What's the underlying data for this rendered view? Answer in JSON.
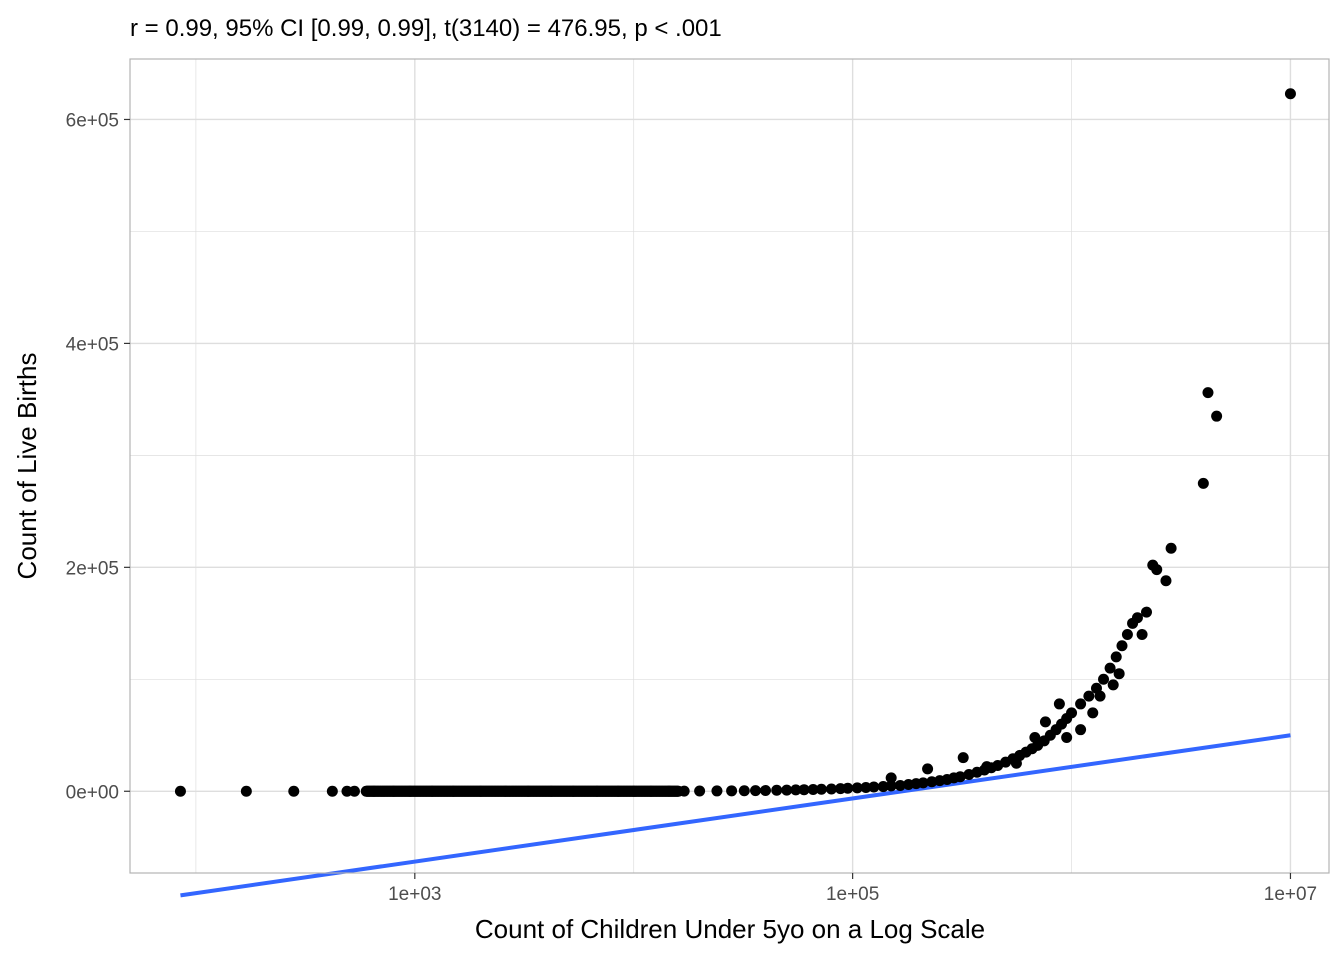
{
  "chart_data": {
    "type": "scatter",
    "title": "r = 0.99, 95% CI [0.99, 0.99], t(3140) = 476.95, p < .001",
    "xlabel": "Count of Children Under 5yo on a Log Scale",
    "ylabel": "Count of Live Births",
    "x_scale": "log10",
    "xlim": [
      50,
      15000000
    ],
    "ylim": [
      -73000,
      654000
    ],
    "x_ticks": [
      {
        "value": 1000,
        "label": "1e+03"
      },
      {
        "value": 100000,
        "label": "1e+05"
      },
      {
        "value": 10000000,
        "label": "1e+07"
      }
    ],
    "x_minor_ticks": [
      100,
      10000,
      1000000
    ],
    "y_ticks": [
      {
        "value": 0,
        "label": "0e+00"
      },
      {
        "value": 200000,
        "label": "2e+05"
      },
      {
        "value": 400000,
        "label": "4e+05"
      },
      {
        "value": 600000,
        "label": "6e+05"
      }
    ],
    "y_minor_ticks": [
      100000,
      300000,
      500000
    ],
    "grid": true,
    "theme": "light",
    "colors": {
      "points": "#000000",
      "fit_line": "#3366ff",
      "grid": "#dedede",
      "panel_border": "#b3b3b3"
    },
    "series": [
      {
        "kind": "points",
        "points": [
          [
            85,
            0
          ],
          [
            170,
            0
          ],
          [
            280,
            0
          ],
          [
            420,
            0
          ],
          [
            490,
            0
          ],
          [
            530,
            0
          ],
          [
            650,
            0
          ],
          [
            800,
            0
          ],
          [
            950,
            0
          ],
          [
            1200,
            0
          ],
          [
            1500,
            0
          ],
          [
            2000,
            0
          ],
          [
            2600,
            0
          ],
          [
            3300,
            0
          ],
          [
            4200,
            0
          ],
          [
            5300,
            0
          ],
          [
            6800,
            0
          ],
          [
            8500,
            0
          ],
          [
            10000,
            0
          ],
          [
            12000,
            0
          ],
          [
            14500,
            100
          ],
          [
            17000,
            150
          ],
          [
            20000,
            200
          ],
          [
            24000,
            300
          ],
          [
            28000,
            400
          ],
          [
            32000,
            500
          ],
          [
            36000,
            600
          ],
          [
            40000,
            700
          ],
          [
            45000,
            900
          ],
          [
            50000,
            1000
          ],
          [
            55000,
            1200
          ],
          [
            60000,
            1400
          ],
          [
            66000,
            1600
          ],
          [
            72000,
            1800
          ],
          [
            80000,
            2000
          ],
          [
            88000,
            2400
          ],
          [
            95000,
            2700
          ],
          [
            105000,
            3000
          ],
          [
            115000,
            3400
          ],
          [
            125000,
            3800
          ],
          [
            138000,
            4200
          ],
          [
            150000,
            4800
          ],
          [
            165000,
            5200
          ],
          [
            180000,
            6000
          ],
          [
            195000,
            6800
          ],
          [
            210000,
            7500
          ],
          [
            230000,
            8500
          ],
          [
            250000,
            9500
          ],
          [
            270000,
            10500
          ],
          [
            290000,
            12000
          ],
          [
            310000,
            13000
          ],
          [
            340000,
            15000
          ],
          [
            370000,
            17000
          ],
          [
            400000,
            19000
          ],
          [
            430000,
            21000
          ],
          [
            460000,
            23000
          ],
          [
            500000,
            26000
          ],
          [
            540000,
            29000
          ],
          [
            580000,
            32000
          ],
          [
            620000,
            35000
          ],
          [
            660000,
            38000
          ],
          [
            700000,
            41000
          ],
          [
            750000,
            45000
          ],
          [
            800000,
            50000
          ],
          [
            850000,
            55000
          ],
          [
            900000,
            60000
          ],
          [
            950000,
            65000
          ],
          [
            1000000,
            70000
          ],
          [
            1100000,
            78000
          ],
          [
            1200000,
            85000
          ],
          [
            1300000,
            92000
          ],
          [
            1400000,
            100000
          ],
          [
            1500000,
            110000
          ],
          [
            1600000,
            120000
          ],
          [
            1700000,
            130000
          ],
          [
            1800000,
            140000
          ],
          [
            1900000,
            150000
          ],
          [
            2000000,
            155000
          ],
          [
            2200000,
            160000
          ],
          [
            2350000,
            202000
          ],
          [
            2450000,
            198000
          ],
          [
            2700000,
            188000
          ],
          [
            2850000,
            217000
          ],
          [
            4000000,
            275000
          ],
          [
            4200000,
            356000
          ],
          [
            4600000,
            335000
          ],
          [
            10000000,
            623000
          ],
          [
            560000,
            25000
          ],
          [
            680000,
            48000
          ],
          [
            760000,
            62000
          ],
          [
            880000,
            78000
          ],
          [
            320000,
            30000
          ],
          [
            410000,
            22000
          ],
          [
            1350000,
            85000
          ],
          [
            1650000,
            105000
          ],
          [
            2100000,
            140000
          ],
          [
            220000,
            20000
          ],
          [
            150000,
            12000
          ],
          [
            1100000,
            55000
          ],
          [
            950000,
            48000
          ],
          [
            1250000,
            70000
          ],
          [
            1550000,
            95000
          ]
        ]
      },
      {
        "kind": "fit_line",
        "points": [
          [
            85,
            -93000
          ],
          [
            10000000,
            50000
          ]
        ]
      }
    ]
  }
}
